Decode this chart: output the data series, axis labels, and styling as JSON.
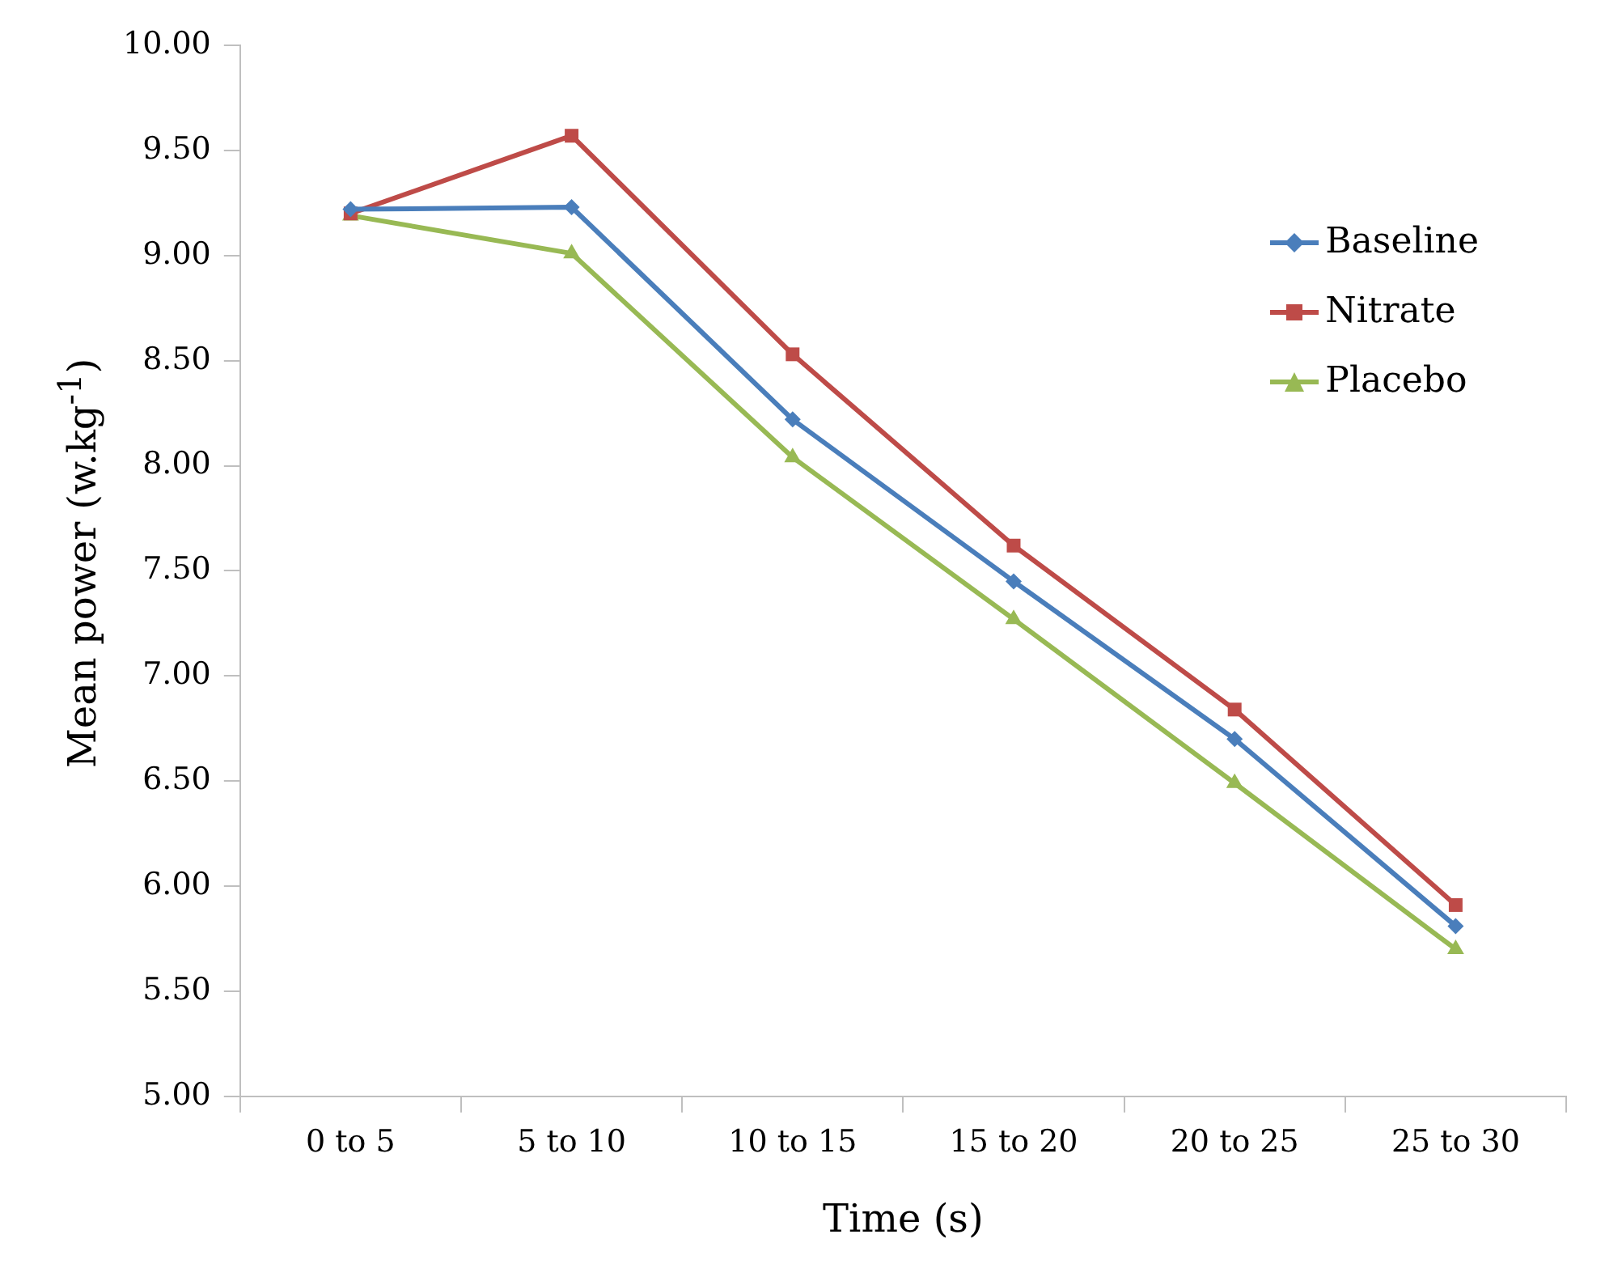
{
  "chart_data": {
    "type": "line",
    "xlabel": "Time (s)",
    "ylabel": "Mean power (w.kg$^{-1}$)",
    "categories": [
      "0 to 5",
      "5 to 10",
      "10 to 15",
      "15 to 20",
      "20 to 25",
      "25 to 30"
    ],
    "series": [
      {
        "name": "Baseline",
        "color": "#4a7ebb",
        "marker": "diamond",
        "values": [
          9.22,
          9.23,
          8.22,
          7.45,
          6.7,
          5.81
        ]
      },
      {
        "name": "Nitrate",
        "color": "#be4b48",
        "marker": "square",
        "values": [
          9.2,
          9.57,
          8.53,
          7.62,
          6.84,
          5.91
        ]
      },
      {
        "name": "Placebo",
        "color": "#98b954",
        "marker": "triangle",
        "values": [
          9.19,
          9.01,
          8.04,
          7.27,
          6.49,
          5.7
        ]
      }
    ],
    "ylim": [
      5,
      10
    ],
    "yticks": [
      {
        "value": 5,
        "label": "5.00"
      },
      {
        "value": 5.5,
        "label": "5.50"
      },
      {
        "value": 6,
        "label": "6.00"
      },
      {
        "value": 6.5,
        "label": "6.50"
      },
      {
        "value": 7,
        "label": "7.00"
      },
      {
        "value": 7.5,
        "label": "7.50"
      },
      {
        "value": 8,
        "label": "8.00"
      },
      {
        "value": 8.5,
        "label": "8.50"
      },
      {
        "value": 9,
        "label": "9.00"
      },
      {
        "value": 9.5,
        "label": "9.50"
      },
      {
        "value": 10,
        "label": "10.00"
      }
    ],
    "grid": false,
    "legend": "top right",
    "line_style": "solid"
  }
}
